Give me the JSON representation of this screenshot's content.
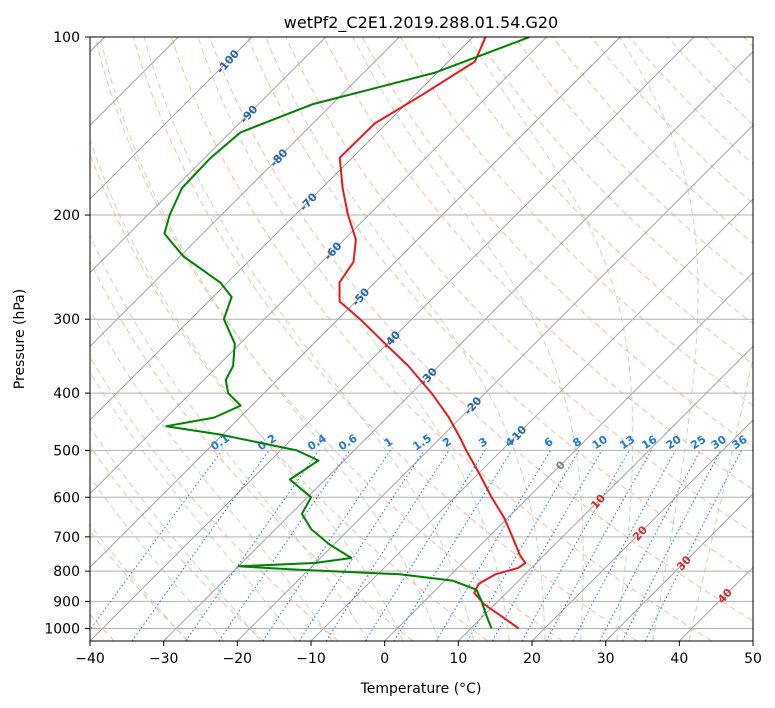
{
  "chart_data": {
    "type": "line",
    "title": "wetPf2_C2E1.2019.288.01.54.G20",
    "xlabel": "Temperature (°C)",
    "ylabel": "Pressure (hPa)",
    "xlim": [
      -40,
      50
    ],
    "ylim": [
      1050,
      100
    ],
    "y_scale": "log",
    "skew": "skew-T",
    "grid": true,
    "x_ticks": [
      "−40",
      "−30",
      "−20",
      "−10",
      "0",
      "10",
      "20",
      "30",
      "40",
      "50"
    ],
    "y_ticks": [
      "100",
      "200",
      "300",
      "400",
      "500",
      "600",
      "700",
      "800",
      "900",
      "1000"
    ],
    "colors": {
      "temperature": "#e41a1c",
      "dewpoint": "#008000",
      "isotherm": "#999999",
      "dry_adiabat": "#f4a582",
      "moist_adiabat": "#b7d9b0",
      "mixing_ratio": "#1f78d1"
    },
    "series": [
      {
        "color": "#e41a1c",
        "points": [
          [
            100,
            -68.3
          ],
          [
            110,
            -66.4
          ],
          [
            125,
            -69.0
          ],
          [
            140,
            -71.6
          ],
          [
            160,
            -71.7
          ],
          [
            180,
            -67.2
          ],
          [
            200,
            -62.8
          ],
          [
            220,
            -58.4
          ],
          [
            240,
            -55.7
          ],
          [
            260,
            -54.8
          ],
          [
            280,
            -52.2
          ],
          [
            300,
            -47.0
          ],
          [
            330,
            -40.3
          ],
          [
            360,
            -34.1
          ],
          [
            400,
            -27.3
          ],
          [
            440,
            -21.6
          ],
          [
            480,
            -16.9
          ],
          [
            500,
            -14.8
          ],
          [
            550,
            -9.6
          ],
          [
            600,
            -5.0
          ],
          [
            650,
            -0.5
          ],
          [
            700,
            3.2
          ],
          [
            750,
            6.6
          ],
          [
            775,
            8.5
          ],
          [
            790,
            8.2
          ],
          [
            810,
            6.0
          ],
          [
            840,
            5.0
          ],
          [
            870,
            5.6
          ],
          [
            910,
            8.5
          ],
          [
            950,
            12.2
          ],
          [
            1000,
            16.5
          ]
        ]
      },
      {
        "color": "#008000",
        "points": [
          [
            100,
            -62.3
          ],
          [
            115,
            -70.4
          ],
          [
            130,
            -82.7
          ],
          [
            145,
            -88.6
          ],
          [
            160,
            -89.2
          ],
          [
            180,
            -89.0
          ],
          [
            200,
            -87.0
          ],
          [
            215,
            -85.2
          ],
          [
            235,
            -79.5
          ],
          [
            260,
            -71.0
          ],
          [
            275,
            -67.5
          ],
          [
            300,
            -65.5
          ],
          [
            330,
            -60.7
          ],
          [
            360,
            -57.9
          ],
          [
            380,
            -57.0
          ],
          [
            400,
            -54.9
          ],
          [
            420,
            -51.5
          ],
          [
            440,
            -53.5
          ],
          [
            455,
            -58.8
          ],
          [
            470,
            -50.4
          ],
          [
            500,
            -37.8
          ],
          [
            520,
            -33.5
          ],
          [
            560,
            -34.8
          ],
          [
            600,
            -29.5
          ],
          [
            640,
            -28.5
          ],
          [
            680,
            -25.1
          ],
          [
            720,
            -20.7
          ],
          [
            760,
            -15.8
          ],
          [
            775,
            -20.1
          ],
          [
            785,
            -30.0
          ],
          [
            795,
            -22.0
          ],
          [
            810,
            -7.0
          ],
          [
            830,
            1.0
          ],
          [
            860,
            5.5
          ],
          [
            900,
            7.8
          ],
          [
            940,
            9.8
          ],
          [
            1000,
            12.8
          ]
        ]
      }
    ],
    "annotations": {
      "dry_adiabat_labels": [
        "-100",
        "-90",
        "-80",
        "-70",
        "-60",
        "-50",
        "-40",
        "-30",
        "-20",
        "-10",
        "0",
        "10",
        "20",
        "30",
        "40"
      ],
      "mixing_ratio_labels": [
        "0.1",
        "0.2",
        "0.4",
        "0.6",
        "1",
        "1.5",
        "2",
        "3",
        "4",
        "6",
        "8",
        "10",
        "13",
        "16",
        "20",
        "25",
        "30",
        "36"
      ]
    }
  }
}
